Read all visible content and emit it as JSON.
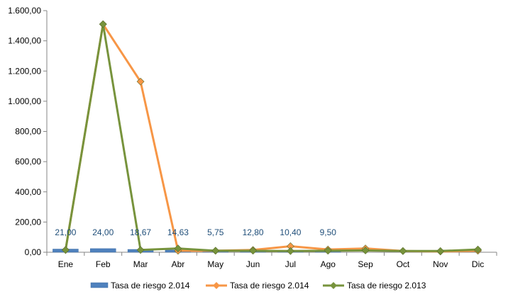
{
  "chart_data": {
    "type": "bar+line",
    "categories": [
      "Ene",
      "Feb",
      "Mar",
      "Abr",
      "May",
      "Jun",
      "Jul",
      "Ago",
      "Sep",
      "Oct",
      "Nov",
      "Dic"
    ],
    "ylim": [
      0,
      1600
    ],
    "yticks": [
      "0,00",
      "200,00",
      "400,00",
      "600,00",
      "800,00",
      "1.000,00",
      "1.200,00",
      "1.400,00",
      "1.600,00"
    ],
    "ytick_values": [
      0,
      200,
      400,
      600,
      800,
      1000,
      1200,
      1400,
      1600
    ],
    "grid": false,
    "legend_position": "bottom",
    "bar_series": {
      "name": "Tasa de riesgo 2.014",
      "values": [
        21.0,
        24.0,
        18.67,
        14.63,
        5.75,
        12.8,
        10.4,
        9.5,
        null,
        null,
        null,
        null
      ],
      "labels": [
        "21,00",
        "24,00",
        "18,67",
        "14,63",
        "5,75",
        "12,80",
        "10,40",
        "9,50",
        "",
        "",
        "",
        ""
      ],
      "color": "#4F81BD"
    },
    "line_series": [
      {
        "name": "Tasa de riesgo 2.014",
        "values": [
          15,
          1510,
          1130,
          10,
          10,
          15,
          40,
          18,
          25,
          8,
          5,
          10
        ],
        "color": "#F79646"
      },
      {
        "name": "Tasa de riesgo 2.013",
        "values": [
          15,
          1510,
          15,
          25,
          10,
          10,
          8,
          10,
          12,
          8,
          8,
          18
        ],
        "color": "#77933C"
      }
    ]
  }
}
